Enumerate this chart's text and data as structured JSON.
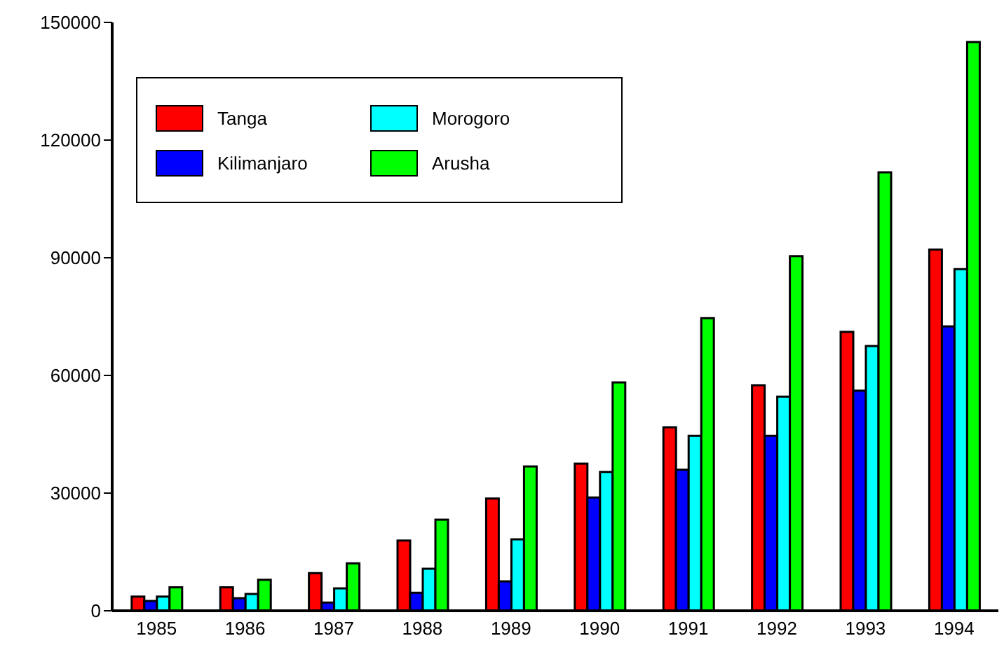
{
  "chart_data": {
    "type": "bar",
    "categories": [
      "1985",
      "1986",
      "1987",
      "1988",
      "1989",
      "1990",
      "1991",
      "1992",
      "1993",
      "1994"
    ],
    "series": [
      {
        "name": "Tanga",
        "color": "#ff0000",
        "values": [
          3600,
          6000,
          9600,
          17900,
          28600,
          37500,
          46800,
          57500,
          71100,
          92100
        ]
      },
      {
        "name": "Kilimanjaro",
        "color": "#0000ff",
        "values": [
          2500,
          3200,
          2100,
          4600,
          7500,
          28900,
          36000,
          44600,
          56100,
          72500
        ]
      },
      {
        "name": "Morogoro",
        "color": "#00ffff",
        "values": [
          3600,
          4300,
          5700,
          10700,
          18200,
          35400,
          44600,
          54600,
          67500,
          87100
        ]
      },
      {
        "name": "Arusha",
        "color": "#00ff00",
        "values": [
          6000,
          7900,
          12100,
          23200,
          36800,
          58200,
          74600,
          90400,
          111800,
          145000
        ]
      }
    ],
    "ylim": [
      0,
      150000
    ],
    "yticks": [
      0,
      30000,
      60000,
      90000,
      120000,
      150000
    ],
    "grid": false,
    "legend": "top left"
  }
}
